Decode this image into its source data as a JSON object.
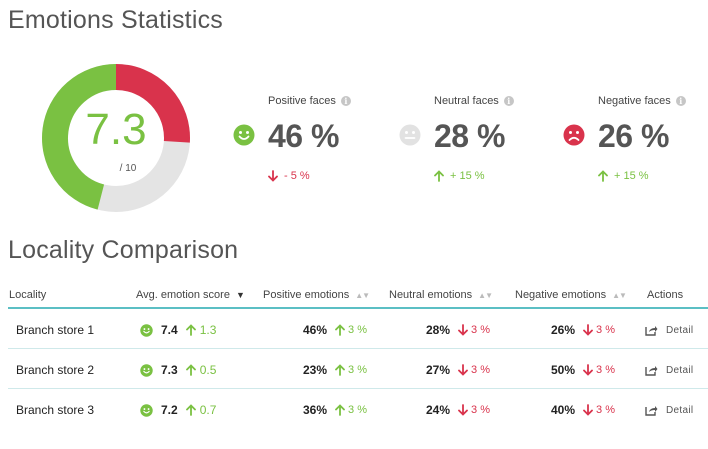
{
  "emotions": {
    "title": "Emotions Statistics",
    "score": {
      "value": "7.3",
      "denominator": "/ 10",
      "positive_share": 0.46,
      "neutral_share": 0.28,
      "negative_share": 0.26
    },
    "colors": {
      "positive": "#7ac142",
      "neutral": "#e4e4e4",
      "negative": "#d9334c"
    },
    "stats": [
      {
        "label": "Positive faces",
        "icon": "smile-face-icon",
        "value": "46 %",
        "change": "- 5 %",
        "direction": "down"
      },
      {
        "label": "Neutral faces",
        "icon": "neutral-face-icon",
        "value": "28 %",
        "change": "+ 15 %",
        "direction": "up"
      },
      {
        "label": "Negative faces",
        "icon": "sad-face-icon",
        "value": "26 %",
        "change": "+ 15 %",
        "direction": "up"
      }
    ]
  },
  "comparison": {
    "title": "Locality Comparison",
    "columns": [
      "Locality",
      "Avg. emotion score",
      "Positive emotions",
      "Neutral emotions",
      "Negative emotions",
      "Actions"
    ],
    "rows": [
      {
        "locality": "Branch store 1",
        "score": "7.4",
        "score_change": "1.3",
        "positive": "46%",
        "positive_change": "3 %",
        "neutral": "28%",
        "neutral_change": "3 %",
        "negative": "26%",
        "negative_change": "3 %",
        "action": "Detail"
      },
      {
        "locality": "Branch store 2",
        "score": "7.3",
        "score_change": "0.5",
        "positive": "23%",
        "positive_change": "3 %",
        "neutral": "27%",
        "neutral_change": "3 %",
        "negative": "50%",
        "negative_change": "3 %",
        "action": "Detail"
      },
      {
        "locality": "Branch store 3",
        "score": "7.2",
        "score_change": "0.7",
        "positive": "36%",
        "positive_change": "3 %",
        "neutral": "24%",
        "neutral_change": "3 %",
        "negative": "40%",
        "negative_change": "3 %",
        "action": "Detail"
      }
    ]
  }
}
